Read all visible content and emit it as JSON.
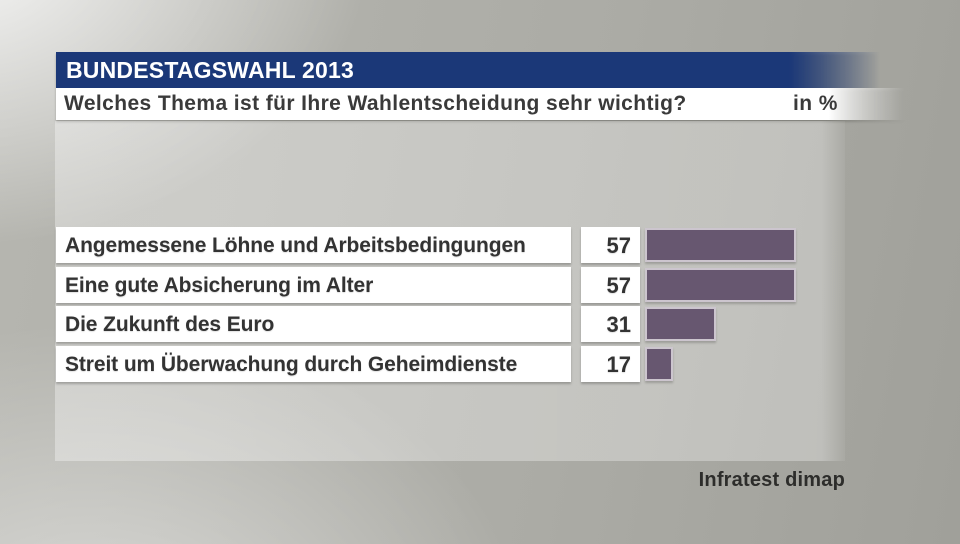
{
  "header": {
    "title": "BUNDESTAGSWAHL 2013"
  },
  "subtitle": {
    "question": "Welches Thema ist für Ihre Wahlentscheidung sehr wichtig?",
    "unit_label": "in %"
  },
  "chart_data": {
    "type": "bar",
    "orientation": "horizontal",
    "title": "Welches Thema ist für Ihre Wahlentscheidung sehr wichtig?",
    "unit": "%",
    "categories": [
      "Angemessene Löhne und Arbeitsbedingungen",
      "Eine gute Absicherung im Alter",
      "Die Zukunft des Euro",
      "Streit um Überwachung durch Geheimdienste"
    ],
    "values": [
      57,
      57,
      31,
      17
    ],
    "bar_color": "#675770",
    "bar_border_color": "#ccc5ce",
    "value_labels_shown": true,
    "grid": false,
    "legend": false
  },
  "footer": {
    "source": "Infratest dimap"
  },
  "colors": {
    "header_bg": "#1b3878",
    "header_text": "#ffffff",
    "subtitle_bg": "#ffffff",
    "text": "#333333",
    "bar_fill": "#675770",
    "bar_border": "#ccc5ce"
  }
}
